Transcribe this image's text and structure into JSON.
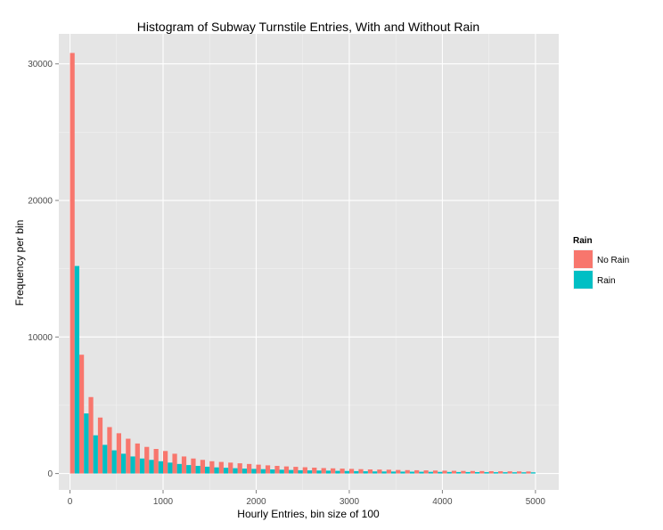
{
  "chart_data": {
    "type": "bar",
    "title": "Histogram of Subway Turnstile Entries, With and Without Rain",
    "xlabel": "Hourly Entries, bin size of 100",
    "ylabel": "Frequency per bin",
    "x_ticks": [
      "0",
      "1000",
      "2000",
      "3000",
      "4000",
      "5000"
    ],
    "y_ticks": [
      "0",
      "10000",
      "20000",
      "30000"
    ],
    "xlim": [
      -120,
      5250
    ],
    "ylim": [
      -1200,
      32200
    ],
    "bin_width": 100,
    "bin_starts": [
      0,
      100,
      200,
      300,
      400,
      500,
      600,
      700,
      800,
      900,
      1000,
      1100,
      1200,
      1300,
      1400,
      1500,
      1600,
      1700,
      1800,
      1900,
      2000,
      2100,
      2200,
      2300,
      2400,
      2500,
      2600,
      2700,
      2800,
      2900,
      3000,
      3100,
      3200,
      3300,
      3400,
      3500,
      3600,
      3700,
      3800,
      3900,
      4000,
      4100,
      4200,
      4300,
      4400,
      4500,
      4600,
      4700,
      4800,
      4900
    ],
    "grid": true,
    "legend": {
      "title": "Rain",
      "placement": "right"
    },
    "series": [
      {
        "name": "No Rain",
        "color": "#F8766D",
        "values": [
          30800,
          8700,
          5600,
          4100,
          3400,
          2950,
          2550,
          2200,
          1950,
          1800,
          1650,
          1450,
          1250,
          1100,
          1000,
          900,
          850,
          800,
          750,
          700,
          650,
          600,
          560,
          520,
          490,
          460,
          430,
          400,
          380,
          360,
          340,
          320,
          300,
          290,
          280,
          260,
          250,
          240,
          230,
          220,
          210,
          200,
          190,
          185,
          180,
          170,
          165,
          160,
          155,
          150
        ]
      },
      {
        "name": "Rain",
        "color": "#00BFC4",
        "values": [
          15200,
          4400,
          2800,
          2100,
          1700,
          1450,
          1250,
          1100,
          1000,
          900,
          800,
          700,
          620,
          560,
          500,
          450,
          420,
          390,
          360,
          340,
          320,
          300,
          280,
          260,
          240,
          230,
          220,
          210,
          195,
          185,
          175,
          165,
          155,
          150,
          145,
          140,
          135,
          130,
          125,
          120,
          115,
          110,
          108,
          105,
          100,
          98,
          95,
          92,
          90,
          88
        ]
      }
    ]
  }
}
